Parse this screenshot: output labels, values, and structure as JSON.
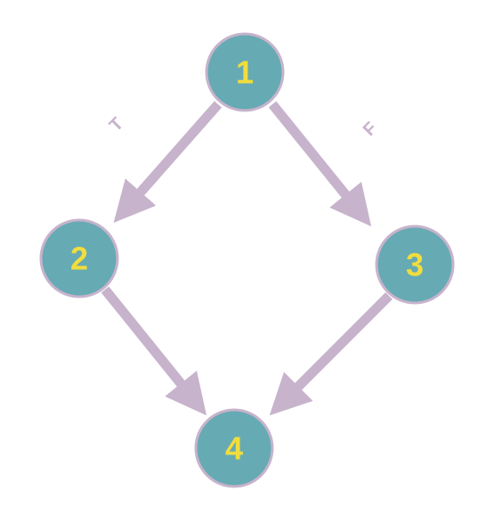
{
  "diagram": {
    "type": "control-flow-graph",
    "nodes": [
      {
        "id": "1",
        "label": "1"
      },
      {
        "id": "2",
        "label": "2"
      },
      {
        "id": "3",
        "label": "3"
      },
      {
        "id": "4",
        "label": "4"
      }
    ],
    "edges": [
      {
        "from": "1",
        "to": "2",
        "label": "T"
      },
      {
        "from": "1",
        "to": "3",
        "label": "F"
      },
      {
        "from": "2",
        "to": "4",
        "label": ""
      },
      {
        "from": "3",
        "to": "4",
        "label": ""
      }
    ],
    "colors": {
      "node_fill": "#66aab4",
      "node_border": "#c7b3cc",
      "node_text": "#f1dd3d",
      "edge": "#c7b3cc",
      "edge_label": "#c7b3cc"
    }
  }
}
